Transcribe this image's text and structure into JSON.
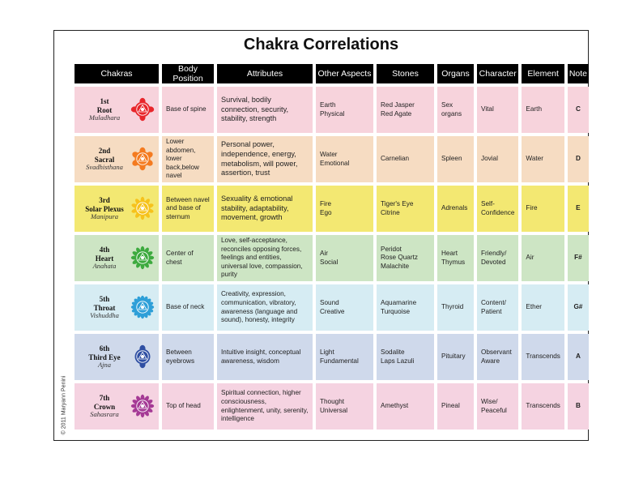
{
  "title": "Chakra Correlations",
  "copyright": "© 2011 Maryann Penini",
  "headers": {
    "chakras": "Chakras",
    "body_position": "Body Position",
    "attributes": "Attributes",
    "other_aspects": "Other Aspects",
    "stones": "Stones",
    "organs": "Organs",
    "character": "Character",
    "element": "Element",
    "note": "Note"
  },
  "rows": [
    {
      "num": "1st",
      "name": "Root",
      "sanskrit": "Muladhara",
      "icon": "root-chakra-icon",
      "color": "#e8262b",
      "body_position": "Base of spine",
      "attributes": "Survival, bodily connection, security, stability, strength",
      "other_aspects": [
        "Earth",
        "Physical"
      ],
      "stones": [
        "Red Jasper",
        "Red Agate"
      ],
      "organs": "Sex organs",
      "character": "Vital",
      "element": "Earth",
      "note": "C"
    },
    {
      "num": "2nd",
      "name": "Sacral",
      "sanskrit": "Svadhisthana",
      "icon": "sacral-chakra-icon",
      "color": "#f47b20",
      "body_position": "Lower abdomen, lower back,below navel",
      "attributes": "Personal power, independence, energy, metabolism, will power, assertion, trust",
      "other_aspects": [
        "Water",
        "Emotional"
      ],
      "stones": [
        "Carnelian"
      ],
      "organs": "Spleen",
      "character": "Jovial",
      "element": "Water",
      "note": "D"
    },
    {
      "num": "3rd",
      "name": "Solar Plexus",
      "sanskrit": "Manipura",
      "icon": "solar-plexus-chakra-icon",
      "color": "#f6c21c",
      "body_position": "Between navel and base of sternum",
      "attributes": "Sexuality & emotional stability, adaptability, movement, growth",
      "other_aspects": [
        "Fire",
        "Ego"
      ],
      "stones": [
        "Tiger's Eye",
        "Citrine"
      ],
      "organs": "Adrenals",
      "character": "Self-Confidence",
      "element": "Fire",
      "note": "E"
    },
    {
      "num": "4th",
      "name": "Heart",
      "sanskrit": "Anahata",
      "icon": "heart-chakra-icon",
      "color": "#3daa3f",
      "body_position": "Center of chest",
      "attributes": "Love, self-acceptance, reconciles opposing forces, feelings and entities, universal love, compassion, purity",
      "other_aspects": [
        "Air",
        "Social"
      ],
      "stones": [
        "Peridot",
        "Rose Quartz",
        "Malachite"
      ],
      "organs": "Heart Thymus",
      "character": "Friendly/ Devoted",
      "element": "Air",
      "note": "F#"
    },
    {
      "num": "5th",
      "name": "Throat",
      "sanskrit": "Vishuddha",
      "icon": "throat-chakra-icon",
      "color": "#2e9fd8",
      "body_position": "Base of neck",
      "attributes": "Creativity, expression, communication, vibratory, awareness (language and sound), honesty, integrity",
      "other_aspects": [
        "Sound",
        "Creative"
      ],
      "stones": [
        "Aquamarine",
        "Turquoise"
      ],
      "organs": "Thyroid",
      "character": "Content/ Patient",
      "element": "Ether",
      "note": "G#"
    },
    {
      "num": "6th",
      "name": "Third Eye",
      "sanskrit": "Ajna",
      "icon": "third-eye-chakra-icon",
      "color": "#2f4fa3",
      "body_position": "Between eyebrows",
      "attributes": "Intuitive insight, conceptual awareness, wisdom",
      "other_aspects": [
        "Light",
        "Fundamental"
      ],
      "stones": [
        "Sodalite",
        "Laps Lazuli"
      ],
      "organs": "Pituitary",
      "character": "Observant Aware",
      "element": "Transcends",
      "note": "A"
    },
    {
      "num": "7th",
      "name": "Crown",
      "sanskrit": "Sahasrara",
      "icon": "crown-chakra-icon",
      "color": "#a53a95",
      "body_position": "Top of head",
      "attributes": "Spiritual connection, higher consciousness, enlightenment, unity, serenity, intelligence",
      "other_aspects": [
        "Thought",
        "Universal"
      ],
      "stones": [
        "Amethyst"
      ],
      "organs": "Pineal",
      "character": "Wise/ Peaceful",
      "element": "Transcends",
      "note": "B"
    }
  ]
}
